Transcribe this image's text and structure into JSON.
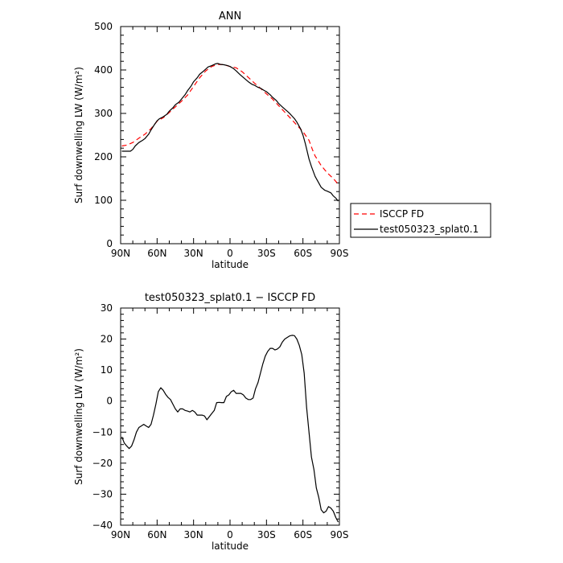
{
  "chart_data": [
    {
      "type": "line",
      "title": "ANN",
      "xlabel": "latitude",
      "ylabel": "Surf downwelling LW (W/m²)",
      "xlim": [
        90,
        -90
      ],
      "ylim": [
        0,
        500
      ],
      "xticks": [
        90,
        60,
        30,
        0,
        -30,
        -60,
        -90
      ],
      "xtick_labels": [
        "90N",
        "60N",
        "30N",
        "0",
        "30S",
        "60S",
        "90S"
      ],
      "yticks": [
        0,
        100,
        200,
        300,
        400,
        500
      ],
      "ytick_labels": [
        "0",
        "100",
        "200",
        "300",
        "400",
        "500"
      ],
      "grid": false,
      "legend_position": "right",
      "series": [
        {
          "name": "ISCCP FD",
          "color": "#ff0000",
          "dash": "dashed",
          "x": [
            89,
            85,
            80,
            75,
            70,
            65,
            60,
            55,
            50,
            45,
            40,
            35,
            30,
            25,
            20,
            15,
            10,
            5,
            0,
            -5,
            -10,
            -15,
            -20,
            -25,
            -30,
            -35,
            -40,
            -45,
            -50,
            -55,
            -60,
            -62,
            -65,
            -68,
            -70,
            -75,
            -80,
            -85,
            -89
          ],
          "y": [
            225,
            227,
            233,
            243,
            252,
            265,
            282,
            290,
            302,
            315,
            328,
            342,
            362,
            382,
            398,
            408,
            413,
            412,
            408,
            405,
            396,
            383,
            370,
            358,
            345,
            333,
            318,
            303,
            288,
            273,
            258,
            250,
            238,
            215,
            202,
            180,
            163,
            150,
            137
          ]
        },
        {
          "name": "test050323_splat0.1",
          "color": "#000000",
          "dash": "solid",
          "x": [
            89,
            85,
            82,
            80,
            78,
            75,
            72,
            70,
            67,
            65,
            62,
            60,
            58,
            55,
            52,
            50,
            47,
            45,
            42,
            40,
            37,
            35,
            32,
            30,
            27,
            25,
            22,
            20,
            18,
            15,
            12,
            10,
            8,
            5,
            2,
            0,
            -3,
            -5,
            -8,
            -10,
            -13,
            -15,
            -18,
            -20,
            -23,
            -25,
            -28,
            -30,
            -33,
            -35,
            -38,
            -40,
            -43,
            -45,
            -48,
            -50,
            -53,
            -55,
            -58,
            -60,
            -62,
            -65,
            -67,
            -70,
            -73,
            -75,
            -78,
            -80,
            -83,
            -85,
            -87,
            -89
          ],
          "y": [
            213,
            213,
            213,
            217,
            225,
            233,
            238,
            242,
            252,
            262,
            275,
            283,
            288,
            292,
            298,
            305,
            313,
            320,
            326,
            333,
            343,
            352,
            363,
            373,
            382,
            390,
            397,
            402,
            407,
            410,
            414,
            415,
            413,
            412,
            410,
            408,
            403,
            398,
            390,
            385,
            378,
            373,
            367,
            365,
            360,
            358,
            353,
            350,
            343,
            337,
            330,
            323,
            315,
            310,
            303,
            297,
            288,
            280,
            265,
            250,
            230,
            195,
            178,
            155,
            140,
            130,
            123,
            121,
            117,
            110,
            105,
            98
          ]
        }
      ]
    },
    {
      "type": "line",
      "title": "test050323_splat0.1 − ISCCP FD",
      "xlabel": "latitude",
      "ylabel": "Surf downwelling LW (W/m²)",
      "xlim": [
        90,
        -90
      ],
      "ylim": [
        -40,
        30
      ],
      "xticks": [
        90,
        60,
        30,
        0,
        -30,
        -60,
        -90
      ],
      "xtick_labels": [
        "90N",
        "60N",
        "30N",
        "0",
        "30S",
        "60S",
        "90S"
      ],
      "yticks": [
        -40,
        -30,
        -20,
        -10,
        0,
        10,
        20,
        30
      ],
      "ytick_labels": [
        "−40",
        "−30",
        "−20",
        "−10",
        "0",
        "10",
        "20",
        "30"
      ],
      "grid": false,
      "series": [
        {
          "color": "#000000",
          "dash": "solid",
          "x": [
            89,
            87,
            85,
            83,
            81,
            79,
            77,
            75,
            73,
            71,
            69,
            67,
            65,
            63,
            61,
            59,
            57,
            55,
            53,
            51,
            49,
            47,
            45,
            43,
            41,
            39,
            37,
            35,
            33,
            31,
            29,
            27,
            25,
            23,
            21,
            19,
            17,
            15,
            13,
            11,
            9,
            7,
            5,
            3,
            1,
            -1,
            -3,
            -5,
            -7,
            -9,
            -11,
            -13,
            -15,
            -17,
            -19,
            -21,
            -23,
            -25,
            -27,
            -29,
            -31,
            -33,
            -35,
            -37,
            -39,
            -41,
            -43,
            -45,
            -47,
            -49,
            -51,
            -53,
            -55,
            -57,
            -59,
            -61,
            -63,
            -65,
            -67,
            -69,
            -71,
            -73,
            -75,
            -77,
            -79,
            -81,
            -83,
            -85,
            -87,
            -89
          ],
          "y": [
            -11.5,
            -13.5,
            -14.5,
            -15.3,
            -14.5,
            -12.5,
            -10,
            -8.5,
            -8,
            -7.5,
            -8,
            -8.5,
            -7.5,
            -4.5,
            -1,
            3,
            4.3,
            3.5,
            2.2,
            1.2,
            0.5,
            -1,
            -2.5,
            -3.5,
            -2.5,
            -2.5,
            -3,
            -3.2,
            -3.5,
            -3,
            -3.5,
            -4.5,
            -4.5,
            -4.5,
            -4.8,
            -6,
            -5,
            -4,
            -3,
            -0.5,
            -0.4,
            -0.5,
            -0.5,
            1.5,
            2,
            3,
            3.5,
            2.5,
            2.5,
            2.5,
            2,
            1,
            0.5,
            0.5,
            1,
            4,
            6,
            9,
            12,
            14.5,
            16,
            17,
            17,
            16.5,
            16.8,
            17.5,
            19,
            20,
            20.5,
            21,
            21.2,
            21.1,
            20,
            18,
            15,
            9,
            -2,
            -10,
            -18,
            -22,
            -28,
            -31,
            -35,
            -36,
            -35.5,
            -34,
            -34.5,
            -35.5,
            -37.5,
            -39
          ]
        }
      ]
    }
  ]
}
